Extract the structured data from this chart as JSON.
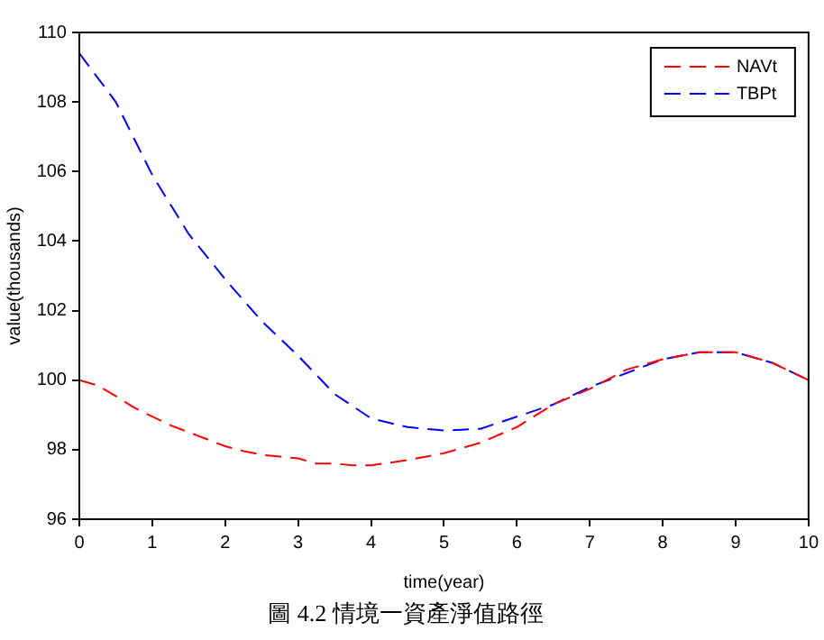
{
  "chart_data": {
    "type": "line",
    "title": "圖 4.2 情境一資產淨值路徑",
    "xlabel": "time(year)",
    "ylabel": "value(thousands)",
    "xlim": [
      0,
      10
    ],
    "xticks": [
      0,
      1,
      2,
      3,
      4,
      5,
      6,
      7,
      8,
      9,
      10
    ],
    "ylim": [
      96,
      110
    ],
    "yticks": [
      96,
      98,
      100,
      102,
      104,
      106,
      108,
      110
    ],
    "grid": false,
    "legend": "top right",
    "marker": "none",
    "series": [
      {
        "name": "NAVt",
        "color": "#ff0000",
        "line_style": "dashed",
        "x": [
          0,
          0.25,
          0.5,
          0.75,
          1,
          1.25,
          1.5,
          1.75,
          2,
          2.25,
          2.4,
          2.5,
          2.75,
          3,
          3.25,
          3.5,
          3.75,
          4,
          4.5,
          5,
          5.5,
          6,
          6.5,
          7,
          7.5,
          8,
          8.5,
          9,
          9.5,
          10
        ],
        "values": [
          100,
          99.85,
          99.54,
          99.21,
          98.95,
          98.7,
          98.5,
          98.3,
          98.1,
          97.96,
          97.9,
          97.85,
          97.8,
          97.75,
          97.6,
          97.6,
          97.55,
          97.55,
          97.7,
          97.9,
          98.2,
          98.65,
          99.3,
          99.75,
          100.3,
          100.6,
          100.8,
          100.8,
          100.5,
          100
        ]
      },
      {
        "name": "TBPt",
        "color": "#0000ff",
        "line_style": "dashed",
        "x": [
          0,
          0.5,
          1,
          1.5,
          2,
          2.5,
          3,
          3.5,
          4,
          4.5,
          5,
          5.5,
          6,
          6.5,
          7,
          7.5,
          8,
          8.5,
          9,
          9.5,
          10
        ],
        "values": [
          109.4,
          108,
          105.9,
          104.2,
          102.9,
          101.7,
          100.7,
          99.6,
          98.9,
          98.65,
          98.55,
          98.6,
          98.95,
          99.3,
          99.8,
          100.2,
          100.6,
          100.8,
          100.8,
          100.5,
          100
        ]
      }
    ]
  }
}
